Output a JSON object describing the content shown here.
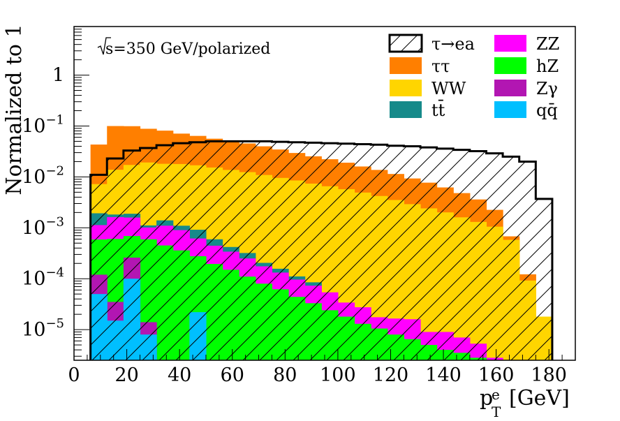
{
  "chart_data": {
    "type": "bar",
    "histogram_style": "stacked step histogram",
    "energy_label": "s=350 GeV/polarized",
    "ylabel": "Normalized to 1",
    "xlabel": {
      "main": "p",
      "superscript": "e",
      "subscript": "T",
      "unit": "[GeV]"
    },
    "xlim": [
      0,
      190
    ],
    "ylim": [
      2.5e-06,
      9
    ],
    "y_scale": "log",
    "x_ticks": [
      "0",
      "20",
      "40",
      "60",
      "80",
      "100",
      "120",
      "140",
      "160",
      "180"
    ],
    "y_ticks": [
      {
        "value": 1,
        "label": "1"
      },
      {
        "value": 0.1,
        "label": "10",
        "exp": "−1"
      },
      {
        "value": 0.01,
        "label": "10",
        "exp": "−2"
      },
      {
        "value": 0.001,
        "label": "10",
        "exp": "−3"
      },
      {
        "value": 0.0001,
        "label": "10",
        "exp": "−4"
      },
      {
        "value": 1e-05,
        "label": "10",
        "exp": "−5"
      }
    ],
    "legend_position": "top-right",
    "legend": [
      {
        "key": "signal",
        "label": "τ→ea",
        "swatch": "hatched-outline"
      },
      {
        "key": "ZZ",
        "label": "ZZ",
        "color": "#ff00ff"
      },
      {
        "key": "tautau",
        "label": "ττ",
        "color": "#ff7f00"
      },
      {
        "key": "hZ",
        "label": "hZ",
        "color": "#00ff00"
      },
      {
        "key": "WW",
        "label": "WW",
        "color": "#ffd500"
      },
      {
        "key": "Zgamma",
        "label": "Zγ",
        "color": "#b216b2"
      },
      {
        "key": "ttbar",
        "label": "tt̄",
        "color": "#168a8a"
      },
      {
        "key": "qqbar",
        "label": "qq̄",
        "color": "#00bfff"
      }
    ],
    "bin_low_edges": [
      6.25,
      12.5,
      18.75,
      25.0,
      31.25,
      37.5,
      43.75,
      50.0,
      56.25,
      62.5,
      68.75,
      75.0,
      81.25,
      87.5,
      93.75,
      100.0,
      106.25,
      112.5,
      118.75,
      125.0,
      131.25,
      137.5,
      143.75,
      150.0,
      156.25,
      162.5,
      168.75,
      175.0
    ],
    "bin_high_edges": [
      12.5,
      18.75,
      25.0,
      31.25,
      37.5,
      43.75,
      50.0,
      56.25,
      62.5,
      68.75,
      75.0,
      81.25,
      87.5,
      93.75,
      100.0,
      106.25,
      112.5,
      118.75,
      125.0,
      131.25,
      137.5,
      143.75,
      150.0,
      156.25,
      162.5,
      168.75,
      175.0,
      181.25
    ],
    "stacked_series": [
      {
        "name": "qq̄",
        "key": "qqbar",
        "color": "#00bfff",
        "values": [
          5e-05,
          1.5e-05,
          0.0001,
          8e-06,
          0,
          0,
          2.2e-05,
          0,
          0,
          0,
          0,
          0,
          0,
          0,
          0,
          0,
          0,
          0,
          0,
          0,
          0,
          0,
          0,
          0,
          0,
          0,
          0,
          0
        ]
      },
      {
        "name": "Zγ",
        "key": "Zgamma",
        "color": "#b216b2",
        "values": [
          7e-05,
          2e-05,
          0.00016,
          6e-06,
          0,
          0,
          0,
          0,
          0,
          0,
          0,
          0,
          0,
          0,
          0,
          0,
          0,
          0,
          0,
          0,
          0,
          0,
          0,
          0,
          0,
          0,
          0,
          0
        ]
      },
      {
        "name": "hZ",
        "key": "hZ",
        "color": "#00ff00",
        "values": [
          0.00047,
          0.00057,
          0.00043,
          0.00058,
          0.00045,
          0.00036,
          0.000255,
          0.000195,
          0.00015,
          0.00011,
          8e-05,
          6.2e-05,
          4.4e-05,
          3.3e-05,
          2.4e-05,
          1.8e-05,
          1.3e-05,
          1.05e-05,
          8e-06,
          6.5e-06,
          5e-06,
          4e-06,
          3.5e-06,
          2.8e-06,
          0,
          0,
          0,
          0
        ]
      },
      {
        "name": "ZZ",
        "key": "ZZ",
        "color": "#ff00ff",
        "values": [
          0.00054,
          0.00102,
          0.0009,
          0.00042,
          0.00065,
          0.00054,
          0.00034,
          0.00025,
          0.00019,
          0.00014,
          9.5e-05,
          7e-05,
          5.2e-05,
          4e-05,
          3e-05,
          1.6e-05,
          1.45e-05,
          7e-06,
          8.5e-06,
          9.5e-06,
          4e-06,
          5e-06,
          3.5e-06,
          2.5e-06,
          2.8e-06,
          0,
          0,
          0
        ]
      },
      {
        "name": "tt̄",
        "key": "ttbar",
        "color": "#168a8a",
        "values": [
          0.0008,
          0.0002,
          0.0003,
          0.0001,
          0.0003,
          0.0002,
          0.0003,
          0.00015,
          8e-05,
          7e-05,
          3e-05,
          2.5e-05,
          1.5e-05,
          1.2e-05,
          0,
          0,
          0,
          0,
          0,
          0,
          0,
          0,
          0,
          0,
          0,
          0,
          0,
          0
        ]
      },
      {
        "name": "WW",
        "key": "WW",
        "color": "#ffd500",
        "values": [
          0.0053,
          0.012,
          0.0153,
          0.0181,
          0.0167,
          0.0168,
          0.016,
          0.0147,
          0.0133,
          0.0121,
          0.0107,
          0.0094,
          0.0084,
          0.0073,
          0.0065,
          0.0057,
          0.0049,
          0.0042,
          0.0035,
          0.0029,
          0.0024,
          0.002,
          0.0016,
          0.0013,
          0.00105,
          0.00058,
          9.2e-05,
          1.8e-05
        ]
      },
      {
        "name": "ττ",
        "key": "tautau",
        "color": "#ff7f00",
        "values": [
          0.036,
          0.086,
          0.082,
          0.069,
          0.063,
          0.053,
          0.047,
          0.041,
          0.037,
          0.033,
          0.029,
          0.025,
          0.021,
          0.018,
          0.0157,
          0.0133,
          0.0111,
          0.0095,
          0.0079,
          0.0064,
          0.0053,
          0.0042,
          0.0032,
          0.0023,
          0.0012,
          0.0001,
          3e-05,
          0
        ]
      }
    ],
    "signal_series": {
      "name": "τ→ea",
      "key": "signal",
      "values": [
        0.011,
        0.023,
        0.033,
        0.037,
        0.042,
        0.046,
        0.048,
        0.05,
        0.05,
        0.05,
        0.05,
        0.049,
        0.048,
        0.047,
        0.046,
        0.045,
        0.044,
        0.043,
        0.041,
        0.04,
        0.038,
        0.036,
        0.034,
        0.032,
        0.029,
        0.025,
        0.02,
        0.0037
      ]
    }
  }
}
